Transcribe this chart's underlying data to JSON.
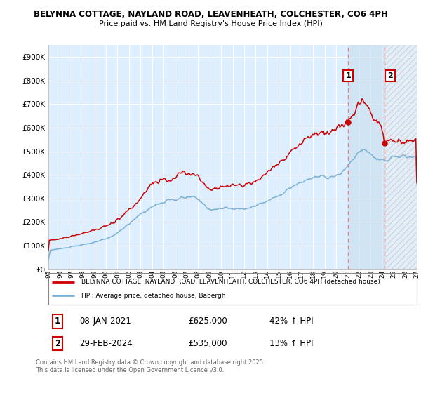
{
  "title1": "BELYNNA COTTAGE, NAYLAND ROAD, LEAVENHEATH, COLCHESTER, CO6 4PH",
  "title2": "Price paid vs. HM Land Registry's House Price Index (HPI)",
  "background_color": "#ffffff",
  "plot_bg_color": "#ddeeff",
  "grid_color": "#ffffff",
  "red_line_color": "#cc0000",
  "blue_line_color": "#7ab0d4",
  "dashed_color": "#e08080",
  "legend_entry1": "BELYNNA COTTAGE, NAYLAND ROAD, LEAVENHEATH, COLCHESTER, CO6 4PH (detached house)",
  "legend_entry2": "HPI: Average price, detached house, Babergh",
  "table_row1": [
    "1",
    "08-JAN-2021",
    "£625,000",
    "42% ↑ HPI"
  ],
  "table_row2": [
    "2",
    "29-FEB-2024",
    "£535,000",
    "13% ↑ HPI"
  ],
  "footer": "Contains HM Land Registry data © Crown copyright and database right 2025.\nThis data is licensed under the Open Government Licence v3.0.",
  "ylim": [
    0,
    950000
  ],
  "yticks": [
    0,
    100000,
    200000,
    300000,
    400000,
    500000,
    600000,
    700000,
    800000,
    900000
  ],
  "xmin": 1995,
  "xmax": 2027,
  "sale1_year": 2021.04,
  "sale2_year": 2024.17,
  "sale1_val": 625000,
  "sale2_val": 535000
}
